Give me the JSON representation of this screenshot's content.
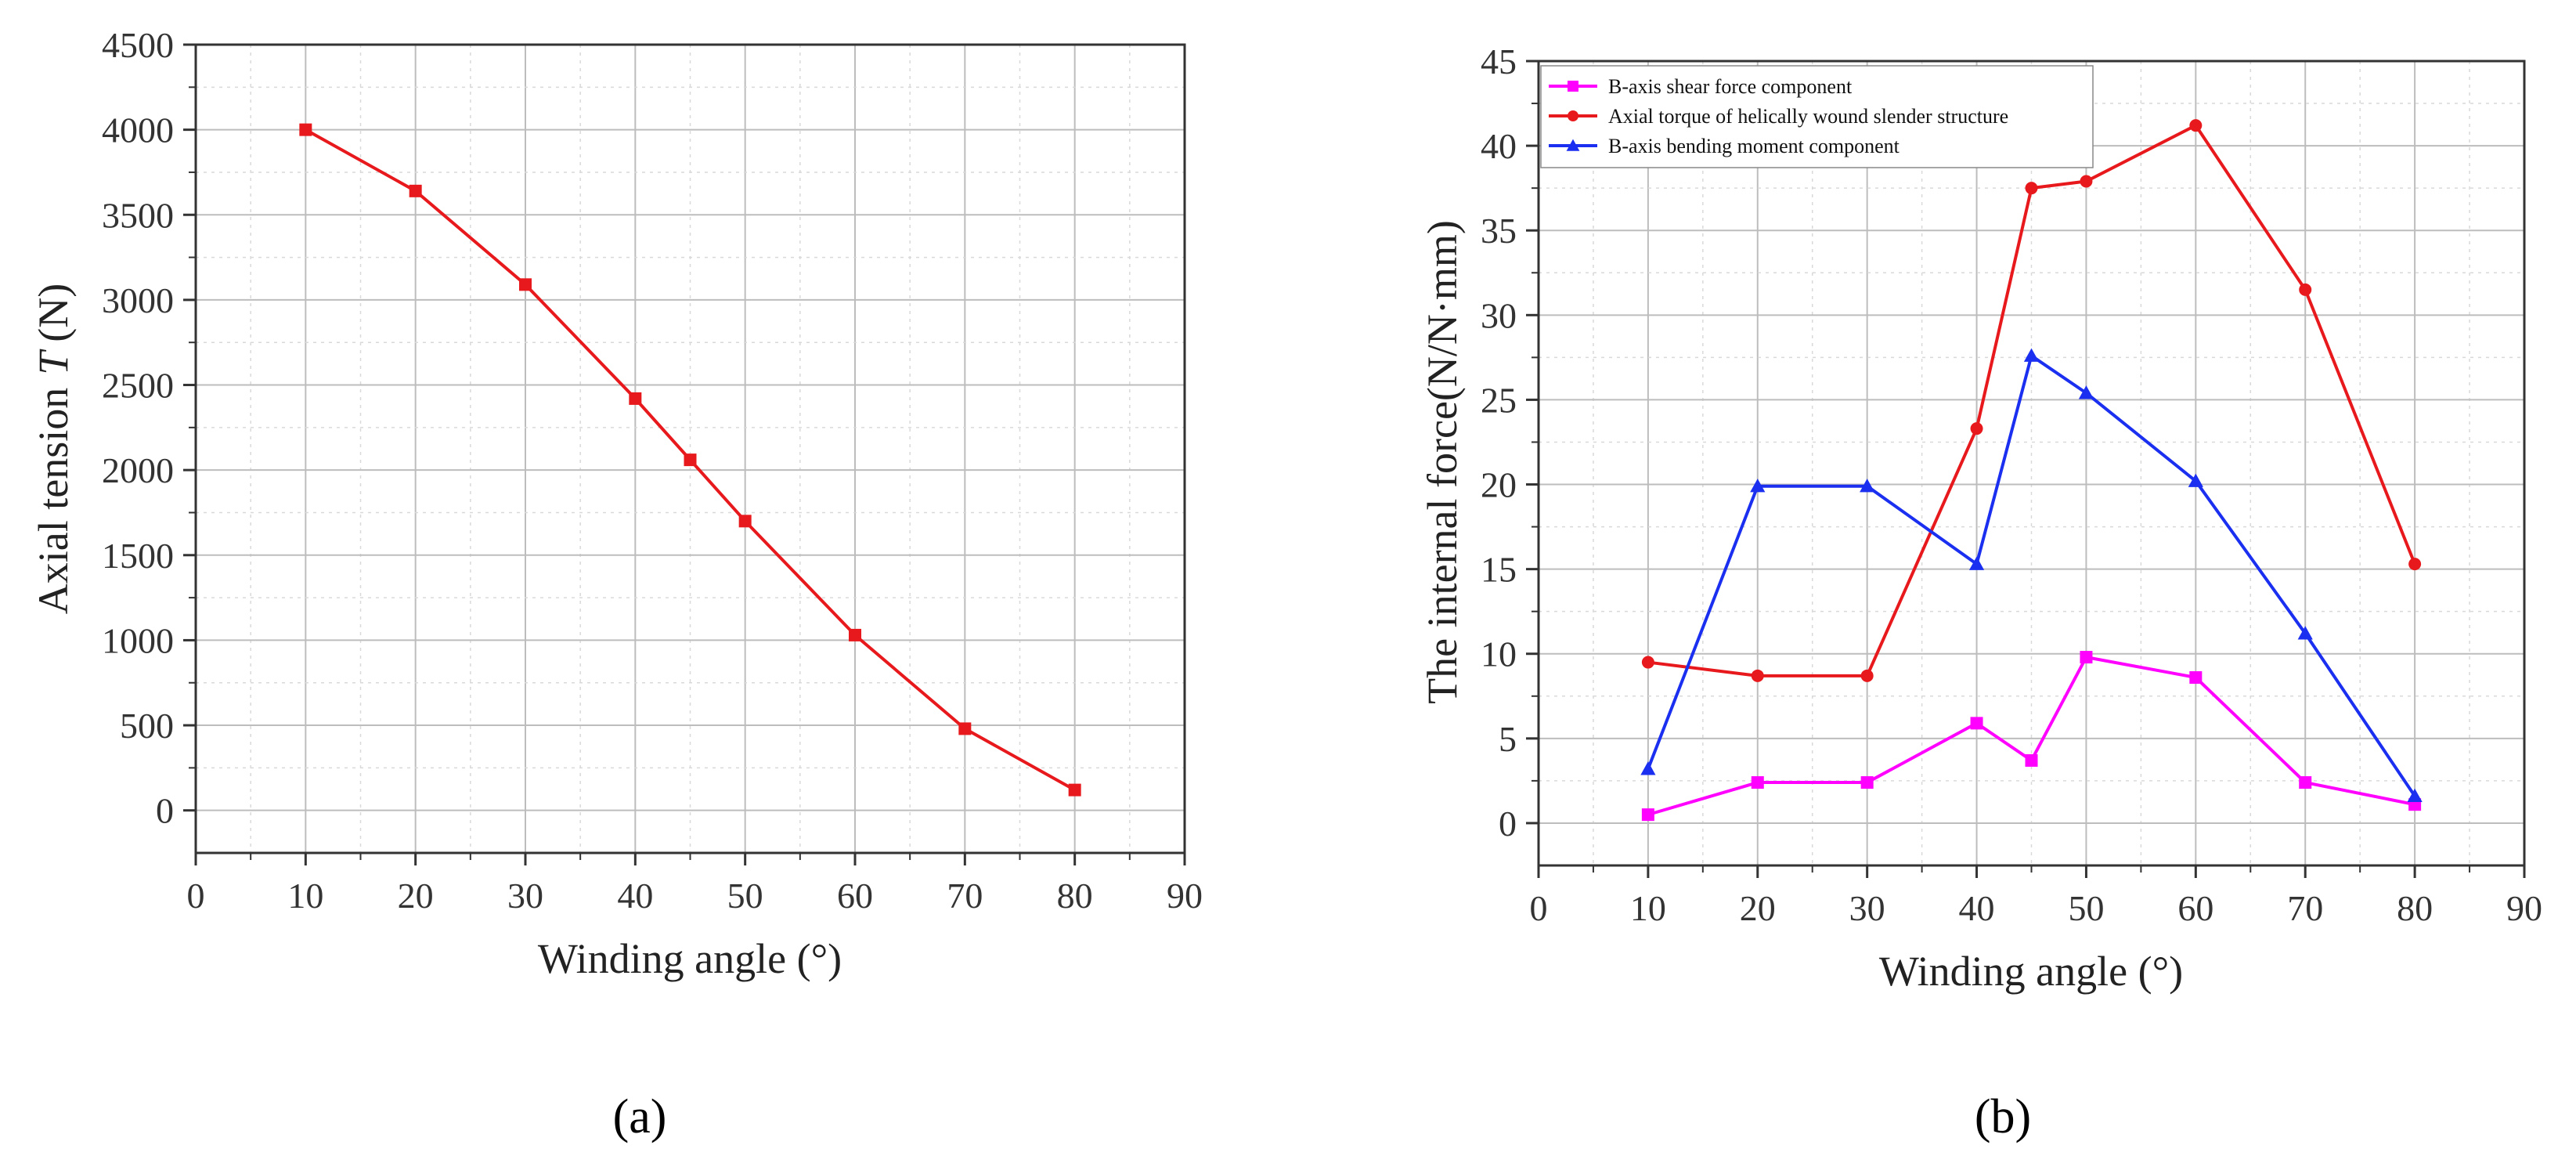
{
  "chart_data": [
    {
      "type": "line",
      "panel_label": "(a)",
      "xlabel": "Winding angle (°)",
      "ylabel": "Axial tension",
      "ylabel_var": "T",
      "ylabel_unit": "(N)",
      "xlim": [
        0,
        90
      ],
      "ylim": [
        -250,
        4500
      ],
      "xticks": [
        0,
        10,
        20,
        30,
        40,
        50,
        60,
        70,
        80,
        90
      ],
      "yticks": [
        0,
        500,
        1000,
        1500,
        2000,
        2500,
        3000,
        3500,
        4000,
        4500
      ],
      "grid": true,
      "series": [
        {
          "name": "Axial tension",
          "color": "#e8191c",
          "marker": "square",
          "x": [
            10,
            20,
            30,
            40,
            45,
            50,
            60,
            70,
            80
          ],
          "values": [
            4000,
            3640,
            3090,
            2420,
            2060,
            1700,
            1030,
            480,
            120
          ]
        }
      ]
    },
    {
      "type": "line",
      "panel_label": "(b)",
      "xlabel": "Winding angle (°)",
      "ylabel": "The internal force(N/N·mm)",
      "xlim": [
        0,
        90
      ],
      "ylim": [
        -2.5,
        45
      ],
      "xticks": [
        0,
        10,
        20,
        30,
        40,
        50,
        60,
        70,
        80,
        90
      ],
      "yticks": [
        0,
        5,
        10,
        15,
        20,
        25,
        30,
        35,
        40,
        45
      ],
      "grid": true,
      "legend_position": "top-left",
      "series": [
        {
          "name": "B-axis shear force component",
          "color": "#ff00ff",
          "marker": "square",
          "x": [
            10,
            20,
            30,
            40,
            45,
            50,
            60,
            70,
            80
          ],
          "values": [
            0.5,
            2.4,
            2.4,
            5.9,
            3.7,
            9.8,
            8.6,
            2.4,
            1.1
          ]
        },
        {
          "name": "Axial torque of helically wound slender structure",
          "color": "#e8191c",
          "marker": "circle",
          "x": [
            10,
            20,
            30,
            40,
            45,
            50,
            60,
            70,
            80
          ],
          "values": [
            9.5,
            8.7,
            8.7,
            23.3,
            37.5,
            37.9,
            41.2,
            31.5,
            15.3
          ]
        },
        {
          "name": "B-axis bending moment component",
          "color": "#1a2ff0",
          "marker": "triangle",
          "x": [
            10,
            20,
            30,
            40,
            45,
            50,
            60,
            70,
            80
          ],
          "values": [
            3.2,
            19.9,
            19.9,
            15.3,
            27.6,
            25.4,
            20.2,
            11.2,
            1.6
          ]
        }
      ]
    }
  ]
}
